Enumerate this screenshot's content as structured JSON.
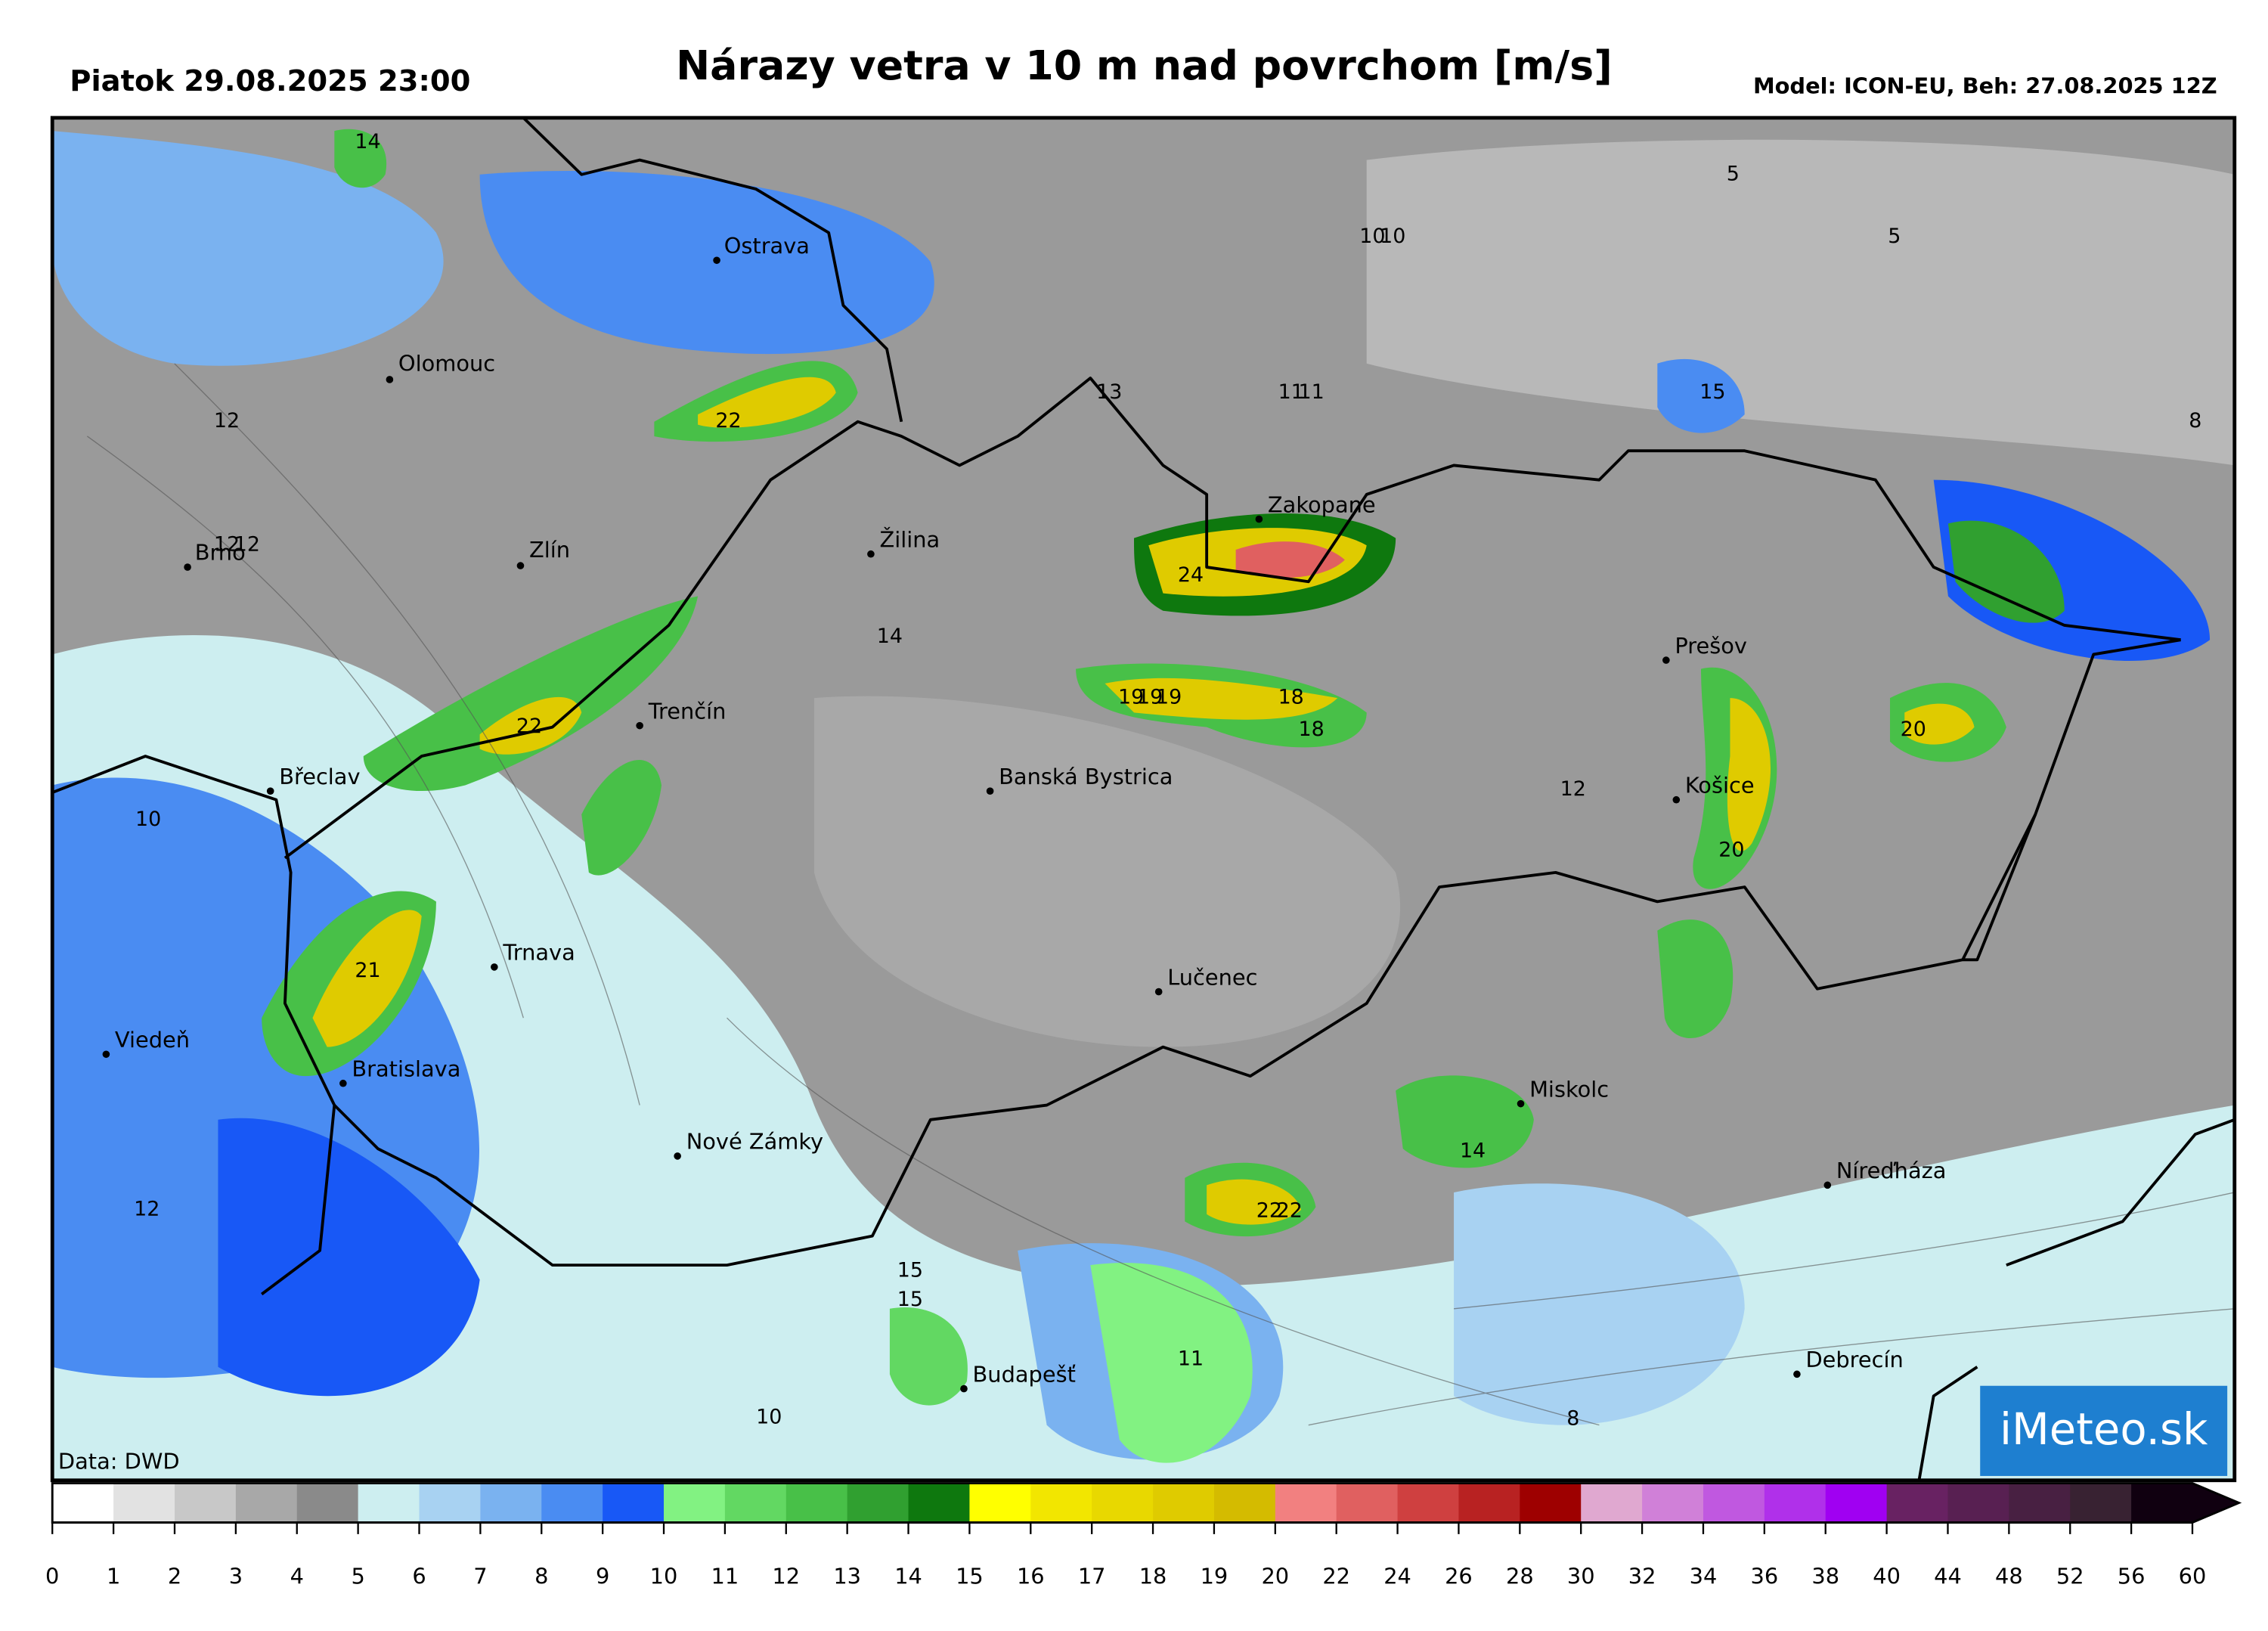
{
  "header": {
    "left": "Piatok 29.08.2025 23:00",
    "title": "Nárazy vetra v 10 m nad povrchom [m/s]",
    "right": "Model: ICON-EU, Beh: 27.08.2025 12Z"
  },
  "cities": [
    "Ostrava",
    "Olomouc",
    "Brno",
    "Zlín",
    "Žilina",
    "Zakopane",
    "Prešov",
    "Trenčín",
    "Břeclav",
    "Banská Bystrica",
    "Košice",
    "Trnava",
    "Lučenec",
    "Viedeň",
    "Bratislava",
    "Miskolc",
    "Nové Zámky",
    "Níreďháza",
    "Budapešť",
    "Debrecín"
  ],
  "map_labels": [
    14,
    10,
    10,
    5,
    5,
    12,
    22,
    13,
    11,
    11,
    15,
    8,
    12,
    12,
    24,
    14,
    19,
    19,
    19,
    18,
    18,
    22,
    20,
    10,
    12,
    20,
    21,
    14,
    12,
    22,
    22,
    15,
    15,
    11,
    10,
    8
  ],
  "source": "Data: DWD",
  "logo": "iMeteo.sk",
  "colorbar": {
    "ticks": [
      0,
      1,
      2,
      3,
      4,
      5,
      6,
      7,
      8,
      9,
      10,
      11,
      12,
      13,
      14,
      15,
      16,
      17,
      18,
      19,
      20,
      22,
      24,
      26,
      28,
      30,
      32,
      34,
      36,
      38,
      40,
      44,
      48,
      52,
      56,
      60
    ],
    "colors": [
      "#ffffff",
      "#e2e2e2",
      "#c8c8c8",
      "#a8a8a8",
      "#8a8a8a",
      "#cdeef0",
      "#a8d2f2",
      "#7ab2f0",
      "#4a8cf2",
      "#1858f6",
      "#82f282",
      "#62d862",
      "#48c048",
      "#30a030",
      "#0e780e",
      "#ffff00",
      "#f2e600",
      "#e8d800",
      "#dfcb00",
      "#d4bb00",
      "#f28080",
      "#e06060",
      "#cf4040",
      "#b82222",
      "#9e0000",
      "#e0a8d0",
      "#d080d8",
      "#c058e0",
      "#b030ea",
      "#a000f2",
      "#682262",
      "#582052",
      "#482042",
      "#382232",
      "#100010"
    ]
  }
}
